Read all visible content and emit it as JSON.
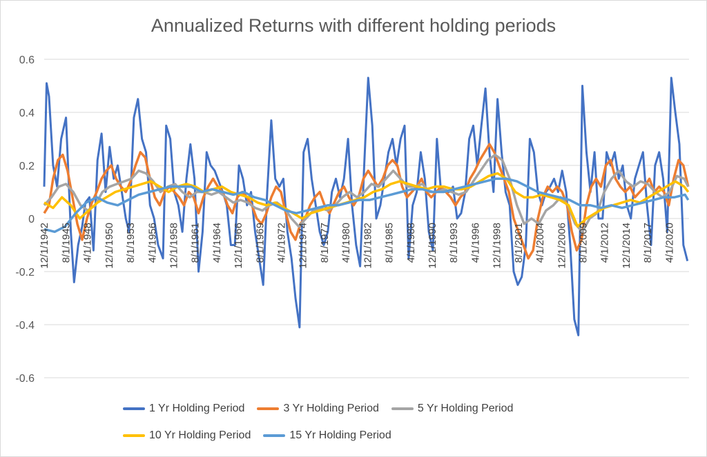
{
  "chart_data": {
    "type": "line",
    "title": "Annualized Returns with different holding periods",
    "xlabel": "",
    "ylabel": "",
    "ylim": [
      -0.6,
      0.6
    ],
    "y_ticks": [
      "0.6",
      "0.4",
      "0.2",
      "0",
      "-0.2",
      "-0.4",
      "-0.6"
    ],
    "x_tick_labels": [
      "12/1/1942",
      "8/1/1945",
      "4/1/1948",
      "12/1/1950",
      "8/1/1953",
      "4/1/1956",
      "12/1/1958",
      "8/1/1961",
      "4/1/1964",
      "12/1/1966",
      "8/1/1969",
      "4/1/1972",
      "12/1/1974",
      "8/1/1977",
      "4/1/1980",
      "12/1/1982",
      "8/1/1985",
      "4/1/1988",
      "12/1/1990",
      "8/1/1993",
      "4/1/1996",
      "12/1/1998",
      "8/1/2001",
      "4/1/2004",
      "12/1/2006",
      "8/1/2009",
      "4/1/2012",
      "12/1/2014",
      "8/1/2017",
      "4/1/2020"
    ],
    "x_range": [
      1942.9,
      2022.7
    ],
    "grid": "horizontal",
    "legend_position": "bottom",
    "series": [
      {
        "name": "1 Yr Holding Period",
        "color": "#4472C4",
        "x": [
          1942.9,
          1943.2,
          1943.5,
          1944.0,
          1944.5,
          1945.0,
          1945.6,
          1946.2,
          1946.6,
          1947.1,
          1947.6,
          1948.0,
          1948.5,
          1949.0,
          1949.5,
          1950.0,
          1950.5,
          1951.0,
          1951.5,
          1952.0,
          1952.5,
          1953.0,
          1953.4,
          1954.0,
          1954.5,
          1955.0,
          1955.5,
          1956.0,
          1956.5,
          1957.0,
          1957.6,
          1958.0,
          1958.5,
          1959.0,
          1959.5,
          1960.0,
          1960.5,
          1961.0,
          1961.5,
          1962.0,
          1962.5,
          1963.0,
          1963.5,
          1964.0,
          1964.5,
          1965.0,
          1965.5,
          1966.0,
          1966.5,
          1967.0,
          1967.5,
          1968.0,
          1968.5,
          1969.0,
          1969.5,
          1970.0,
          1970.5,
          1971.0,
          1971.5,
          1972.0,
          1972.5,
          1973.0,
          1973.5,
          1974.0,
          1974.5,
          1975.0,
          1975.5,
          1976.0,
          1976.5,
          1977.0,
          1977.5,
          1978.0,
          1978.5,
          1979.0,
          1979.5,
          1980.0,
          1980.5,
          1981.0,
          1981.5,
          1982.0,
          1982.5,
          1983.0,
          1983.5,
          1984.0,
          1984.5,
          1985.0,
          1985.5,
          1986.0,
          1986.5,
          1987.0,
          1987.5,
          1988.0,
          1988.5,
          1989.0,
          1989.5,
          1990.0,
          1990.5,
          1991.0,
          1991.5,
          1992.0,
          1992.5,
          1993.0,
          1993.5,
          1994.0,
          1994.5,
          1995.0,
          1995.5,
          1996.0,
          1996.5,
          1997.0,
          1997.5,
          1998.0,
          1998.5,
          1999.0,
          1999.5,
          2000.0,
          2000.5,
          2001.0,
          2001.5,
          2002.0,
          2002.5,
          2003.0,
          2003.5,
          2004.0,
          2004.5,
          2005.0,
          2005.5,
          2006.0,
          2006.5,
          2007.0,
          2007.5,
          2008.0,
          2008.5,
          2009.0,
          2009.5,
          2010.0,
          2010.5,
          2011.0,
          2011.5,
          2012.0,
          2012.5,
          2013.0,
          2013.5,
          2014.0,
          2014.5,
          2015.0,
          2015.5,
          2016.0,
          2016.5,
          2017.0,
          2017.5,
          2018.0,
          2018.5,
          2019.0,
          2019.5,
          2020.0,
          2020.5,
          2021.0,
          2021.5,
          2022.0,
          2022.5
        ],
        "y": [
          0.12,
          0.51,
          0.46,
          0.2,
          0.12,
          0.3,
          0.38,
          -0.05,
          -0.24,
          -0.1,
          -0.03,
          0.06,
          0.08,
          -0.12,
          0.22,
          0.32,
          0.1,
          0.27,
          0.15,
          0.2,
          0.1,
          0.0,
          -0.05,
          0.38,
          0.45,
          0.3,
          0.25,
          0.05,
          0.0,
          -0.1,
          -0.15,
          0.35,
          0.3,
          0.1,
          0.05,
          -0.05,
          0.15,
          0.28,
          0.15,
          -0.2,
          -0.05,
          0.25,
          0.2,
          0.18,
          0.14,
          0.1,
          0.05,
          -0.1,
          -0.1,
          0.2,
          0.15,
          0.05,
          0.1,
          -0.05,
          -0.15,
          -0.25,
          0.1,
          0.37,
          0.15,
          0.12,
          0.15,
          -0.05,
          -0.15,
          -0.3,
          -0.41,
          0.25,
          0.3,
          0.15,
          0.05,
          -0.05,
          -0.1,
          -0.05,
          0.1,
          0.15,
          0.08,
          0.15,
          0.3,
          0.05,
          -0.1,
          -0.18,
          0.2,
          0.53,
          0.35,
          0.0,
          0.05,
          0.15,
          0.25,
          0.3,
          0.2,
          0.3,
          0.35,
          -0.15,
          0.05,
          0.1,
          0.25,
          0.15,
          -0.05,
          -0.12,
          0.3,
          0.1,
          0.1,
          0.1,
          0.12,
          0.0,
          0.02,
          0.1,
          0.3,
          0.35,
          0.2,
          0.35,
          0.49,
          0.25,
          0.1,
          0.45,
          0.25,
          0.1,
          0.05,
          -0.2,
          -0.25,
          -0.22,
          -0.1,
          0.3,
          0.25,
          0.1,
          0.05,
          0.1,
          0.12,
          0.15,
          0.1,
          0.18,
          0.1,
          -0.1,
          -0.38,
          -0.44,
          0.5,
          0.25,
          0.1,
          0.25,
          0.0,
          0.0,
          0.25,
          0.2,
          0.25,
          0.15,
          0.2,
          0.05,
          0.0,
          0.15,
          0.2,
          0.25,
          0.05,
          -0.1,
          0.2,
          0.25,
          0.15,
          -0.05,
          0.53,
          0.4,
          0.28,
          -0.1,
          -0.16
        ]
      },
      {
        "name": "3 Yr Holding Period",
        "color": "#ED7D31",
        "x": [
          1942.9,
          1943.5,
          1944.0,
          1944.6,
          1945.2,
          1945.8,
          1946.4,
          1947.0,
          1947.6,
          1948.2,
          1948.8,
          1949.4,
          1950.0,
          1950.6,
          1951.2,
          1951.8,
          1952.4,
          1953.0,
          1953.6,
          1954.2,
          1954.8,
          1955.4,
          1956.0,
          1956.6,
          1957.2,
          1957.8,
          1958.4,
          1959.0,
          1959.6,
          1960.2,
          1960.8,
          1961.4,
          1962.0,
          1962.6,
          1963.2,
          1963.8,
          1964.4,
          1965.0,
          1965.6,
          1966.2,
          1966.8,
          1967.4,
          1968.0,
          1968.6,
          1969.2,
          1969.8,
          1970.4,
          1971.0,
          1971.6,
          1972.2,
          1972.8,
          1973.4,
          1974.0,
          1974.6,
          1975.2,
          1975.8,
          1976.4,
          1977.0,
          1977.6,
          1978.2,
          1978.8,
          1979.4,
          1980.0,
          1980.6,
          1981.2,
          1981.8,
          1982.4,
          1983.0,
          1983.6,
          1984.2,
          1984.8,
          1985.4,
          1986.0,
          1986.6,
          1987.2,
          1987.8,
          1988.4,
          1989.0,
          1989.6,
          1990.2,
          1990.8,
          1991.4,
          1992.0,
          1992.6,
          1993.2,
          1993.8,
          1994.4,
          1995.0,
          1995.6,
          1996.2,
          1996.8,
          1997.4,
          1998.0,
          1998.6,
          1999.2,
          1999.8,
          2000.4,
          2001.0,
          2001.6,
          2002.2,
          2002.8,
          2003.4,
          2004.0,
          2004.6,
          2005.2,
          2005.8,
          2006.4,
          2007.0,
          2007.6,
          2008.2,
          2008.8,
          2009.4,
          2010.0,
          2010.6,
          2011.2,
          2011.8,
          2012.4,
          2013.0,
          2013.6,
          2014.2,
          2014.8,
          2015.4,
          2016.0,
          2016.6,
          2017.2,
          2017.8,
          2018.4,
          2019.0,
          2019.6,
          2020.2,
          2020.8,
          2021.4,
          2022.0,
          2022.6
        ],
        "y": [
          0.02,
          0.05,
          0.15,
          0.22,
          0.24,
          0.18,
          0.08,
          -0.02,
          -0.08,
          0.0,
          0.06,
          0.1,
          0.15,
          0.18,
          0.2,
          0.15,
          0.12,
          0.1,
          0.14,
          0.2,
          0.25,
          0.23,
          0.15,
          0.08,
          0.05,
          0.1,
          0.12,
          0.1,
          0.08,
          0.05,
          0.1,
          0.08,
          0.02,
          0.08,
          0.12,
          0.15,
          0.12,
          0.1,
          0.05,
          0.02,
          0.08,
          0.1,
          0.08,
          0.05,
          0.0,
          -0.02,
          0.02,
          0.08,
          0.12,
          0.1,
          0.02,
          -0.05,
          -0.08,
          -0.02,
          0.0,
          0.05,
          0.08,
          0.1,
          0.05,
          0.02,
          0.06,
          0.1,
          0.12,
          0.08,
          0.05,
          0.08,
          0.15,
          0.18,
          0.15,
          0.12,
          0.15,
          0.2,
          0.22,
          0.2,
          0.12,
          0.08,
          0.1,
          0.12,
          0.15,
          0.1,
          0.08,
          0.1,
          0.12,
          0.1,
          0.08,
          0.05,
          0.08,
          0.1,
          0.15,
          0.18,
          0.22,
          0.25,
          0.28,
          0.25,
          0.2,
          0.15,
          0.1,
          0.0,
          -0.05,
          -0.1,
          -0.15,
          -0.12,
          0.0,
          0.08,
          0.12,
          0.1,
          0.12,
          0.1,
          0.05,
          -0.05,
          -0.12,
          -0.08,
          0.05,
          0.12,
          0.15,
          0.12,
          0.2,
          0.22,
          0.15,
          0.12,
          0.1,
          0.12,
          0.08,
          0.1,
          0.12,
          0.15,
          0.1,
          0.12,
          0.1,
          0.05,
          0.15,
          0.22,
          0.2,
          0.12
        ]
      },
      {
        "name": "5 Yr Holding Period",
        "color": "#A5A5A5",
        "x": [
          1942.9,
          1943.8,
          1944.7,
          1945.6,
          1946.5,
          1947.4,
          1948.3,
          1949.2,
          1950.1,
          1951.0,
          1951.9,
          1952.8,
          1953.7,
          1954.6,
          1955.5,
          1956.4,
          1957.3,
          1958.2,
          1959.1,
          1960.0,
          1960.9,
          1961.8,
          1962.7,
          1963.6,
          1964.5,
          1965.4,
          1966.3,
          1967.2,
          1968.1,
          1969.0,
          1969.9,
          1970.8,
          1971.7,
          1972.6,
          1973.5,
          1974.4,
          1975.3,
          1976.2,
          1977.1,
          1978.0,
          1978.9,
          1979.8,
          1980.7,
          1981.6,
          1982.5,
          1983.4,
          1984.3,
          1985.2,
          1986.1,
          1987.0,
          1987.9,
          1988.8,
          1989.7,
          1990.6,
          1991.5,
          1992.4,
          1993.3,
          1994.2,
          1995.1,
          1996.0,
          1996.9,
          1997.8,
          1998.7,
          1999.6,
          2000.5,
          2001.4,
          2002.3,
          2003.2,
          2004.1,
          2005.0,
          2005.9,
          2006.8,
          2007.7,
          2008.6,
          2009.5,
          2010.4,
          2011.3,
          2012.2,
          2013.1,
          2014.0,
          2014.9,
          2015.8,
          2016.7,
          2017.6,
          2018.5,
          2019.4,
          2020.3,
          2021.2,
          2022.1,
          2022.6
        ],
        "y": [
          0.05,
          0.08,
          0.12,
          0.13,
          0.1,
          0.05,
          0.03,
          0.05,
          0.1,
          0.12,
          0.13,
          0.14,
          0.15,
          0.18,
          0.17,
          0.14,
          0.1,
          0.12,
          0.13,
          0.1,
          0.08,
          0.1,
          0.1,
          0.09,
          0.1,
          0.08,
          0.06,
          0.07,
          0.06,
          0.04,
          0.03,
          0.05,
          0.06,
          0.04,
          0.0,
          -0.03,
          0.0,
          0.03,
          0.04,
          0.03,
          0.05,
          0.08,
          0.1,
          0.08,
          0.1,
          0.13,
          0.12,
          0.15,
          0.18,
          0.15,
          0.12,
          0.12,
          0.13,
          0.1,
          0.1,
          0.11,
          0.1,
          0.09,
          0.1,
          0.14,
          0.18,
          0.22,
          0.24,
          0.22,
          0.15,
          0.05,
          -0.02,
          0.0,
          -0.02,
          0.03,
          0.05,
          0.08,
          0.05,
          -0.02,
          -0.05,
          0.0,
          0.02,
          0.1,
          0.15,
          0.18,
          0.14,
          0.12,
          0.14,
          0.13,
          0.1,
          0.08,
          0.1,
          0.16,
          0.15,
          0.12
        ]
      },
      {
        "name": "10 Yr Holding Period",
        "color": "#FFC000",
        "x": [
          1942.9,
          1944.0,
          1945.1,
          1946.2,
          1947.3,
          1948.4,
          1949.5,
          1950.6,
          1951.7,
          1952.8,
          1953.9,
          1955.0,
          1956.1,
          1957.2,
          1958.3,
          1959.4,
          1960.5,
          1961.6,
          1962.7,
          1963.8,
          1964.9,
          1966.0,
          1967.1,
          1968.2,
          1969.3,
          1970.4,
          1971.5,
          1972.6,
          1973.7,
          1974.8,
          1975.9,
          1977.0,
          1978.1,
          1979.2,
          1980.3,
          1981.4,
          1982.5,
          1983.6,
          1984.7,
          1985.8,
          1986.9,
          1988.0,
          1989.1,
          1990.2,
          1991.3,
          1992.4,
          1993.5,
          1994.6,
          1995.7,
          1996.8,
          1997.9,
          1999.0,
          2000.1,
          2001.2,
          2002.3,
          2003.4,
          2004.5,
          2005.6,
          2006.7,
          2007.8,
          2008.9,
          2010.0,
          2011.1,
          2012.2,
          2013.3,
          2014.4,
          2015.5,
          2016.6,
          2017.7,
          2018.8,
          2019.9,
          2021.0,
          2022.1,
          2022.6
        ],
        "y": [
          0.06,
          0.04,
          0.08,
          0.05,
          0.0,
          0.03,
          0.06,
          0.08,
          0.1,
          0.11,
          0.12,
          0.13,
          0.14,
          0.12,
          0.1,
          0.12,
          0.13,
          0.12,
          0.1,
          0.11,
          0.12,
          0.1,
          0.09,
          0.08,
          0.06,
          0.05,
          0.06,
          0.04,
          0.02,
          0.0,
          0.02,
          0.03,
          0.04,
          0.05,
          0.06,
          0.07,
          0.08,
          0.1,
          0.11,
          0.13,
          0.14,
          0.13,
          0.12,
          0.11,
          0.12,
          0.12,
          0.11,
          0.11,
          0.12,
          0.14,
          0.16,
          0.17,
          0.15,
          0.1,
          0.08,
          0.08,
          0.09,
          0.08,
          0.07,
          0.05,
          -0.03,
          0.0,
          0.02,
          0.04,
          0.05,
          0.06,
          0.07,
          0.06,
          0.08,
          0.1,
          0.12,
          0.14,
          0.12,
          0.1
        ]
      },
      {
        "name": "15 Yr Holding Period",
        "color": "#5B9BD5",
        "x": [
          1942.9,
          1944.2,
          1945.5,
          1946.8,
          1948.1,
          1949.4,
          1950.7,
          1952.0,
          1953.3,
          1954.6,
          1955.9,
          1957.2,
          1958.5,
          1959.8,
          1961.1,
          1962.4,
          1963.7,
          1965.0,
          1966.3,
          1967.6,
          1968.9,
          1970.2,
          1971.5,
          1972.8,
          1974.1,
          1975.4,
          1976.7,
          1978.0,
          1979.3,
          1980.6,
          1981.9,
          1983.2,
          1984.5,
          1985.8,
          1987.1,
          1988.4,
          1989.7,
          1991.0,
          1992.3,
          1993.6,
          1994.9,
          1996.2,
          1997.5,
          1998.8,
          2000.1,
          2001.4,
          2002.7,
          2004.0,
          2005.3,
          2006.6,
          2007.9,
          2009.2,
          2010.5,
          2011.8,
          2013.1,
          2014.4,
          2015.7,
          2017.0,
          2018.3,
          2019.6,
          2020.9,
          2022.2,
          2022.6
        ],
        "y": [
          -0.04,
          -0.05,
          -0.03,
          0.02,
          0.06,
          0.08,
          0.06,
          0.05,
          0.07,
          0.09,
          0.1,
          0.11,
          0.12,
          0.12,
          0.12,
          0.1,
          0.11,
          0.1,
          0.09,
          0.1,
          0.08,
          0.07,
          0.05,
          0.03,
          0.02,
          0.03,
          0.04,
          0.05,
          0.05,
          0.06,
          0.07,
          0.07,
          0.08,
          0.09,
          0.1,
          0.11,
          0.11,
          0.1,
          0.1,
          0.11,
          0.12,
          0.13,
          0.14,
          0.15,
          0.15,
          0.14,
          0.12,
          0.1,
          0.09,
          0.08,
          0.07,
          0.05,
          0.05,
          0.04,
          0.05,
          0.04,
          0.05,
          0.06,
          0.07,
          0.08,
          0.08,
          0.09,
          0.07
        ]
      }
    ]
  }
}
